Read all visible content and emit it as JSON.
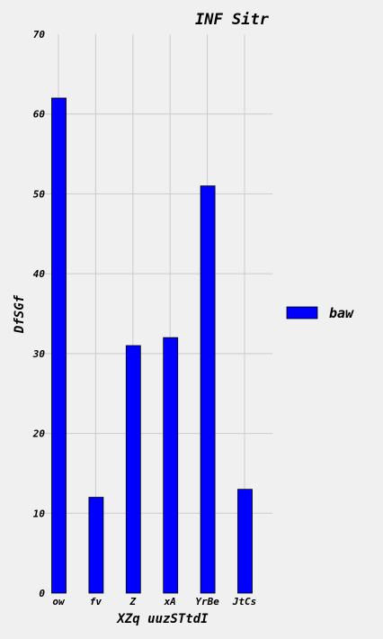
{
  "chart_data": {
    "type": "bar",
    "title": "INF Sitr",
    "xlabel": "XZq uuzSTtdI",
    "ylabel": "DfSGf",
    "categories": [
      "ow",
      "fv",
      "Z",
      "xA",
      "YrBe",
      "JtCs"
    ],
    "series": [
      {
        "name": "baw",
        "values": [
          62,
          12,
          31,
          32,
          51,
          13
        ],
        "color": "#0000ff"
      }
    ],
    "ylim": [
      0,
      70
    ],
    "yticks": [
      0,
      10,
      20,
      30,
      40,
      50,
      60,
      70
    ],
    "grid": true,
    "legend_position": "right"
  }
}
